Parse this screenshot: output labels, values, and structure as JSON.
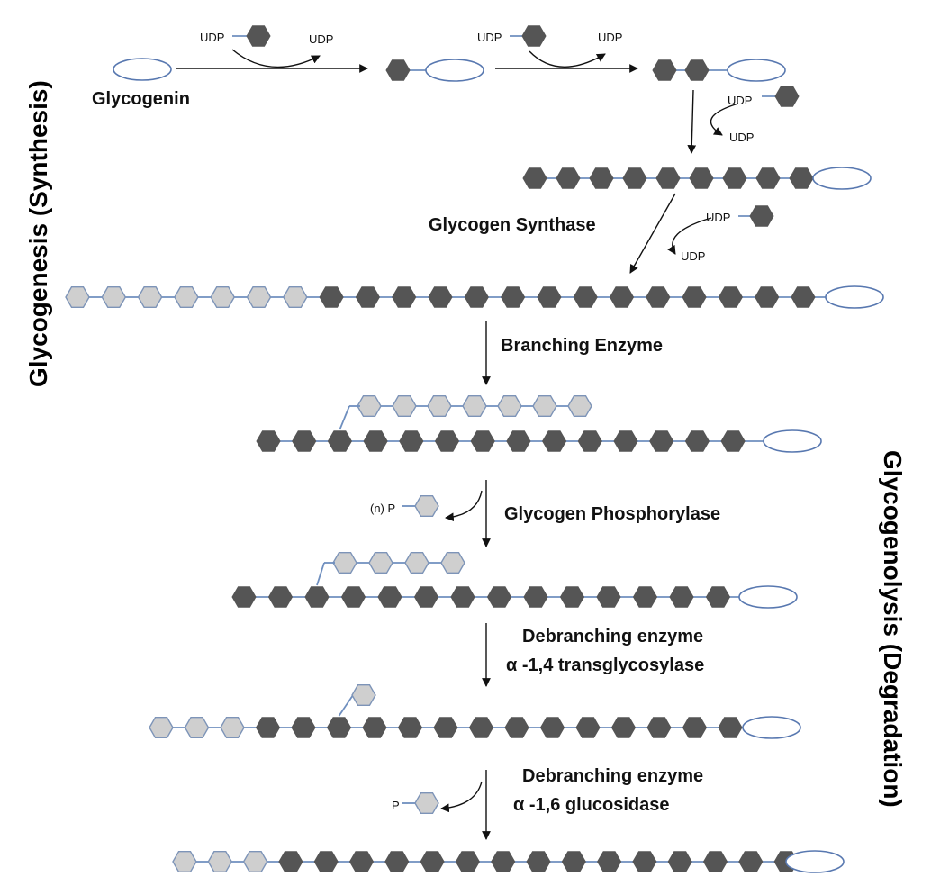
{
  "side_titles": {
    "left": "Glycogenesis  (Synthesis)",
    "right": "Glycogenolysis  (Degradation)"
  },
  "labels": {
    "glycogenin": "Glycogenin",
    "glycogen_synthase": "Glycogen Synthase",
    "branching_enzyme": "Branching Enzyme",
    "glycogen_phosphorylase": "Glycogen Phosphorylase",
    "debranching_1_line1": "Debranching enzyme",
    "debranching_1_line2": "α -1,4 transglycosylase",
    "debranching_2_line1": "Debranching enzyme",
    "debranching_2_line2": "α -1,6  glucosidase"
  },
  "small_labels": {
    "udp": "UDP",
    "n_p": "(n) P",
    "p": "P"
  },
  "legend_colors": {
    "glucose_dark": "#555555",
    "glucose_light": "#cfcfcf",
    "link": "#6f8fbf",
    "glycogenin_outline": "#5878b0"
  }
}
